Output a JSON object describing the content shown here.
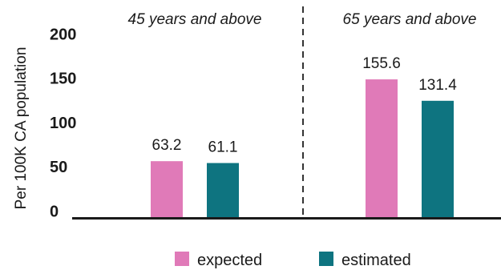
{
  "chart_data": {
    "type": "bar",
    "ylabel": "Per 100K CA population",
    "ylim": [
      0,
      200
    ],
    "yticks": [
      0,
      50,
      100,
      150,
      200
    ],
    "grid": false,
    "legend_position": "bottom",
    "panels": [
      {
        "title": "45 years and above"
      },
      {
        "title": "65 years and above"
      }
    ],
    "series": [
      {
        "name": "expected",
        "color": "#e07ab8",
        "values": [
          63.2,
          155.6
        ],
        "labels": [
          "63.2",
          "155.6"
        ]
      },
      {
        "name": "estimated",
        "color": "#0e7480",
        "values": [
          61.1,
          131.4
        ],
        "labels": [
          "61.1",
          "131.4"
        ]
      }
    ]
  }
}
